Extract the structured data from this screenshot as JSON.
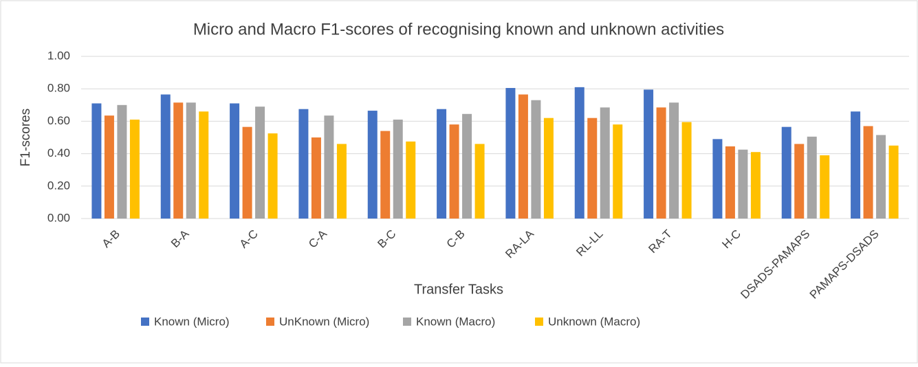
{
  "chart_data": {
    "type": "bar",
    "title": "Micro and Macro F1-scores of recognising known and unknown activities",
    "x_label": "Transfer Tasks",
    "y_label": "F1-scores",
    "categories": [
      "A-B",
      "B-A",
      "A-C",
      "C-A",
      "B-C",
      "C-B",
      "RA-LA",
      "RL-LL",
      "RA-T",
      "H-C",
      "DSADS-PAMAPS",
      "PAMAPS-DSADS"
    ],
    "series": [
      {
        "name": "Known (Micro)",
        "color": "#4472c4",
        "values": [
          0.71,
          0.765,
          0.71,
          0.675,
          0.665,
          0.675,
          0.805,
          0.81,
          0.795,
          0.49,
          0.565,
          0.66
        ]
      },
      {
        "name": "UnKnown (Micro)",
        "color": "#ed7d31",
        "values": [
          0.635,
          0.715,
          0.565,
          0.5,
          0.54,
          0.58,
          0.765,
          0.62,
          0.685,
          0.445,
          0.46,
          0.57
        ]
      },
      {
        "name": "Known (Macro)",
        "color": "#a5a5a5",
        "values": [
          0.7,
          0.715,
          0.69,
          0.635,
          0.61,
          0.645,
          0.73,
          0.685,
          0.715,
          0.425,
          0.505,
          0.515
        ]
      },
      {
        "name": "Unknown (Macro)",
        "color": "#ffc000",
        "values": [
          0.61,
          0.66,
          0.525,
          0.46,
          0.475,
          0.46,
          0.62,
          0.58,
          0.595,
          0.41,
          0.39,
          0.45
        ]
      }
    ],
    "ylim": [
      0,
      1
    ],
    "yticks": [
      {
        "value": 0,
        "label": "0.00"
      },
      {
        "value": 0.2,
        "label": "0.20"
      },
      {
        "value": 0.4,
        "label": "0.40"
      },
      {
        "value": 0.6,
        "label": "0.60"
      },
      {
        "value": 0.8,
        "label": "0.80"
      },
      {
        "value": 1,
        "label": "1.00"
      }
    ],
    "grid": true,
    "legend": "bottom"
  }
}
